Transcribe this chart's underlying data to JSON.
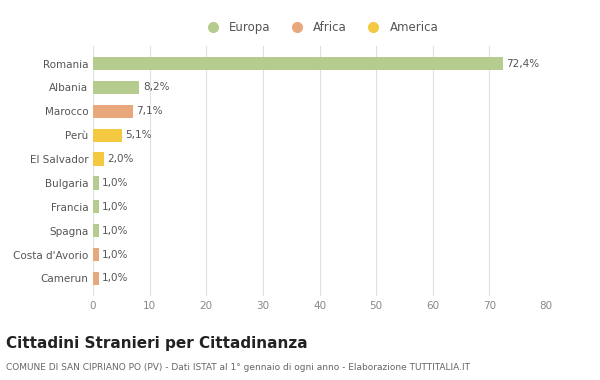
{
  "categories": [
    "Romania",
    "Albania",
    "Marocco",
    "Perù",
    "El Salvador",
    "Bulgaria",
    "Francia",
    "Spagna",
    "Costa d'Avorio",
    "Camerun"
  ],
  "values": [
    72.4,
    8.2,
    7.1,
    5.1,
    2.0,
    1.0,
    1.0,
    1.0,
    1.0,
    1.0
  ],
  "colors": [
    "#b5cc8e",
    "#b5cc8e",
    "#e8a87c",
    "#f5c842",
    "#f5c842",
    "#b5cc8e",
    "#b5cc8e",
    "#b5cc8e",
    "#e8a87c",
    "#e8a87c"
  ],
  "labels": [
    "72,4%",
    "8,2%",
    "7,1%",
    "5,1%",
    "2,0%",
    "1,0%",
    "1,0%",
    "1,0%",
    "1,0%",
    "1,0%"
  ],
  "xlim": [
    0,
    80
  ],
  "xticks": [
    0,
    10,
    20,
    30,
    40,
    50,
    60,
    70,
    80
  ],
  "title": "Cittadini Stranieri per Cittadinanza",
  "subtitle": "COMUNE DI SAN CIPRIANO PO (PV) - Dati ISTAT al 1° gennaio di ogni anno - Elaborazione TUTTITALIA.IT",
  "legend": [
    {
      "label": "Europa",
      "color": "#b5cc8e"
    },
    {
      "label": "Africa",
      "color": "#e8a87c"
    },
    {
      "label": "America",
      "color": "#f5c842"
    }
  ],
  "bg_color": "#ffffff",
  "grid_color": "#e0e0e0",
  "bar_height": 0.55,
  "label_fontsize": 7.5,
  "title_fontsize": 11,
  "subtitle_fontsize": 6.5,
  "tick_fontsize": 7.5,
  "legend_fontsize": 8.5
}
